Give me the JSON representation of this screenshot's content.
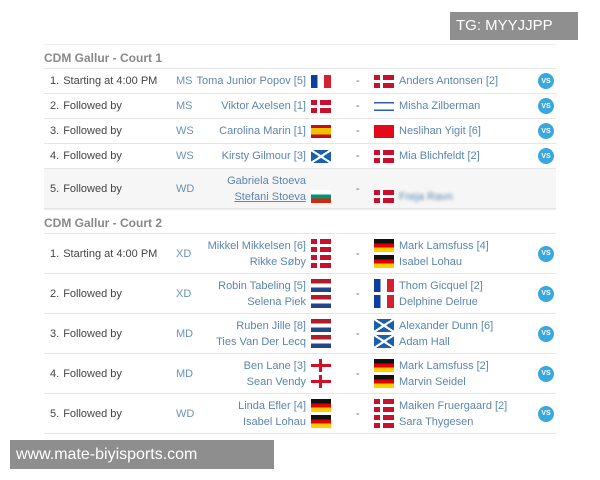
{
  "colors": {
    "link": "#5b86ad",
    "vs": "#3aa7df",
    "type": "#6a93b6"
  },
  "courts": [
    {
      "title": "CDM Gallur - Court 1",
      "matches": [
        {
          "num": "1.",
          "when": "Starting at 4:00 PM",
          "type": "MS",
          "left": [
            {
              "name": "Toma Junior Popov [5]",
              "flag": "fr"
            }
          ],
          "right": [
            {
              "name": "Anders Antonsen [2]",
              "flag": "dk"
            }
          ],
          "vs": "VS"
        },
        {
          "num": "2.",
          "when": "Followed by",
          "type": "MS",
          "left": [
            {
              "name": "Viktor Axelsen [1]",
              "flag": "dk"
            }
          ],
          "right": [
            {
              "name": "Misha Zilberman",
              "flag": "il"
            }
          ],
          "vs": "VS"
        },
        {
          "num": "3.",
          "when": "Followed by",
          "type": "WS",
          "left": [
            {
              "name": "Carolina Marin [1]",
              "flag": "es"
            }
          ],
          "right": [
            {
              "name": "Neslihan Yigit [6]",
              "flag": "tr"
            }
          ],
          "vs": "VS"
        },
        {
          "num": "4.",
          "when": "Followed by",
          "type": "WS",
          "left": [
            {
              "name": "Kirsty Gilmour [3]",
              "flag": "sc"
            }
          ],
          "right": [
            {
              "name": "Mia Blichfeldt [2]",
              "flag": "dk"
            }
          ],
          "vs": "VS"
        },
        {
          "num": "5.",
          "when": "Followed by",
          "type": "WD",
          "left": [
            {
              "name": "Gabriela Stoeva",
              "flag": ""
            },
            {
              "name": "Stefani Stoeva",
              "flag": "bg"
            }
          ],
          "right": [
            {
              "name": "",
              "flag": ""
            },
            {
              "name": "Freja Ravn",
              "flag": "dk"
            }
          ],
          "vs": ""
        }
      ]
    },
    {
      "title": "CDM Gallur - Court 2",
      "matches": [
        {
          "num": "1.",
          "when": "Starting at 4:00 PM",
          "type": "XD",
          "left": [
            {
              "name": "Mikkel Mikkelsen [6]",
              "flag": "dk"
            },
            {
              "name": "Rikke Søby",
              "flag": "dk"
            }
          ],
          "right": [
            {
              "name": "Mark Lamsfuss [4]",
              "flag": "de"
            },
            {
              "name": "Isabel Lohau",
              "flag": "de"
            }
          ],
          "vs": "VS"
        },
        {
          "num": "2.",
          "when": "Followed by",
          "type": "XD",
          "left": [
            {
              "name": "Robin Tabeling [5]",
              "flag": "nl"
            },
            {
              "name": "Selena Piek",
              "flag": "nl"
            }
          ],
          "right": [
            {
              "name": "Thom Gicquel [2]",
              "flag": "fr"
            },
            {
              "name": "Delphine Delrue",
              "flag": "fr"
            }
          ],
          "vs": "VS"
        },
        {
          "num": "3.",
          "when": "Followed by",
          "type": "MD",
          "left": [
            {
              "name": "Ruben Jille [8]",
              "flag": "nl"
            },
            {
              "name": "Ties Van Der Lecq",
              "flag": "nl"
            }
          ],
          "right": [
            {
              "name": "Alexander Dunn [6]",
              "flag": "sc"
            },
            {
              "name": "Adam Hall",
              "flag": "sc"
            }
          ],
          "vs": "VS"
        },
        {
          "num": "4.",
          "when": "Followed by",
          "type": "MD",
          "left": [
            {
              "name": "Ben Lane [3]",
              "flag": "en"
            },
            {
              "name": "Sean Vendy",
              "flag": "en"
            }
          ],
          "right": [
            {
              "name": "Mark Lamsfuss [2]",
              "flag": "de"
            },
            {
              "name": "Marvin Seidel",
              "flag": "de"
            }
          ],
          "vs": "VS"
        },
        {
          "num": "5.",
          "when": "Followed by",
          "type": "WD",
          "left": [
            {
              "name": "Linda Efler [4]",
              "flag": "de"
            },
            {
              "name": "Isabel Lohau",
              "flag": "de"
            }
          ],
          "right": [
            {
              "name": "Maiken Fruergaard [2]",
              "flag": "dk"
            },
            {
              "name": "Sara Thygesen",
              "flag": "dk"
            }
          ],
          "vs": "VS"
        }
      ]
    }
  ],
  "separator": "-",
  "overlay": {
    "tg": "TG: MYYJJPP",
    "watermark": "www.mate-biyisports.com"
  }
}
